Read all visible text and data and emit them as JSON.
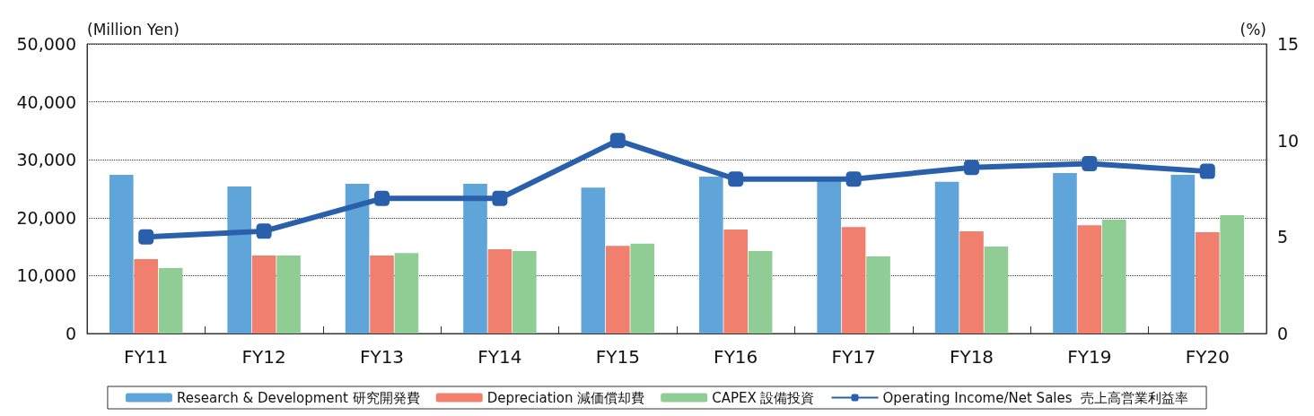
{
  "chart_data": {
    "type": "bar",
    "ylabel": "(Million Yen)",
    "y2label": "(%)",
    "categories": [
      "FY11",
      "FY12",
      "FY13",
      "FY14",
      "FY15",
      "FY16",
      "FY17",
      "FY18",
      "FY19",
      "FY20"
    ],
    "series": [
      {
        "name": "Research & Development 研究開発費",
        "color": "#5fa5d9",
        "values": [
          27400,
          25400,
          25850,
          25850,
          25200,
          27100,
          26600,
          26200,
          27700,
          27400
        ]
      },
      {
        "name": "Depreciation 減価償却費",
        "color": "#f07f6e",
        "values": [
          12850,
          13450,
          13450,
          14550,
          15150,
          17950,
          18400,
          17650,
          18700,
          17500
        ]
      },
      {
        "name": "CAPEX 設備投資",
        "color": "#90cd95",
        "values": [
          11300,
          13450,
          13900,
          14250,
          15500,
          14250,
          13300,
          15000,
          19650,
          20450
        ]
      },
      {
        "name": "Operating Income/Net Sales  売上高営業利益率",
        "color": "#2a5fac",
        "type": "line",
        "axis": "y2",
        "values": [
          5.0,
          5.3,
          7.0,
          7.0,
          10.0,
          8.0,
          8.0,
          8.6,
          8.8,
          8.4
        ]
      }
    ],
    "ylim": [
      0,
      50000
    ],
    "yticks": [
      {
        "value": 0,
        "label": "0"
      },
      {
        "value": 10000,
        "label": "10,000"
      },
      {
        "value": 20000,
        "label": "20,000"
      },
      {
        "value": 30000,
        "label": "30,000"
      },
      {
        "value": 40000,
        "label": "40,000"
      },
      {
        "value": 50000,
        "label": "50,000"
      }
    ],
    "y2lim": [
      0,
      15
    ],
    "y2ticks": [
      0,
      5,
      10,
      15
    ],
    "grid": "y",
    "legend": "bottom",
    "marker": "square",
    "line_style": "solid"
  }
}
